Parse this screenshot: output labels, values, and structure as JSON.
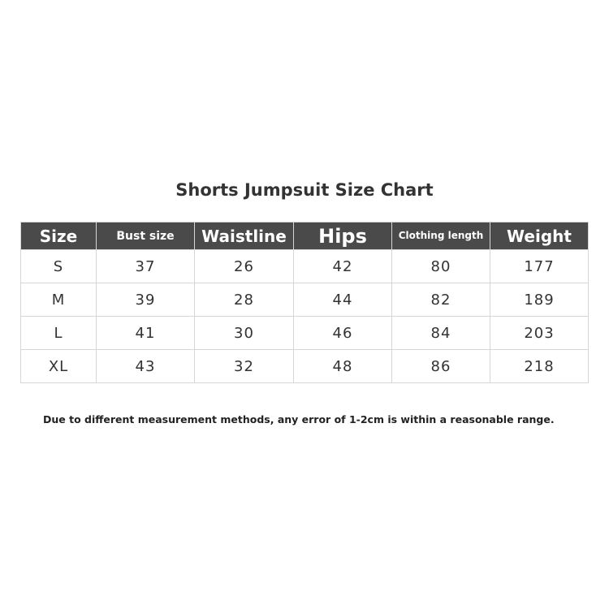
{
  "title": "Shorts Jumpsuit Size Chart",
  "headers": [
    "Size",
    "Bust size",
    "Waistline",
    "Hips",
    "Clothing length",
    "Weight"
  ],
  "rows": [
    [
      "S",
      "37",
      "26",
      "42",
      "80",
      "177"
    ],
    [
      "M",
      "39",
      "28",
      "44",
      "82",
      "189"
    ],
    [
      "L",
      "41",
      "30",
      "46",
      "84",
      "203"
    ],
    [
      "XL",
      "43",
      "32",
      "48",
      "86",
      "218"
    ]
  ],
  "note": "Due to different measurement methods, any error of 1-2cm is within a reasonable range.",
  "colors": {
    "header_bg": "#4a4a4a",
    "border": "#d6d6d6"
  }
}
